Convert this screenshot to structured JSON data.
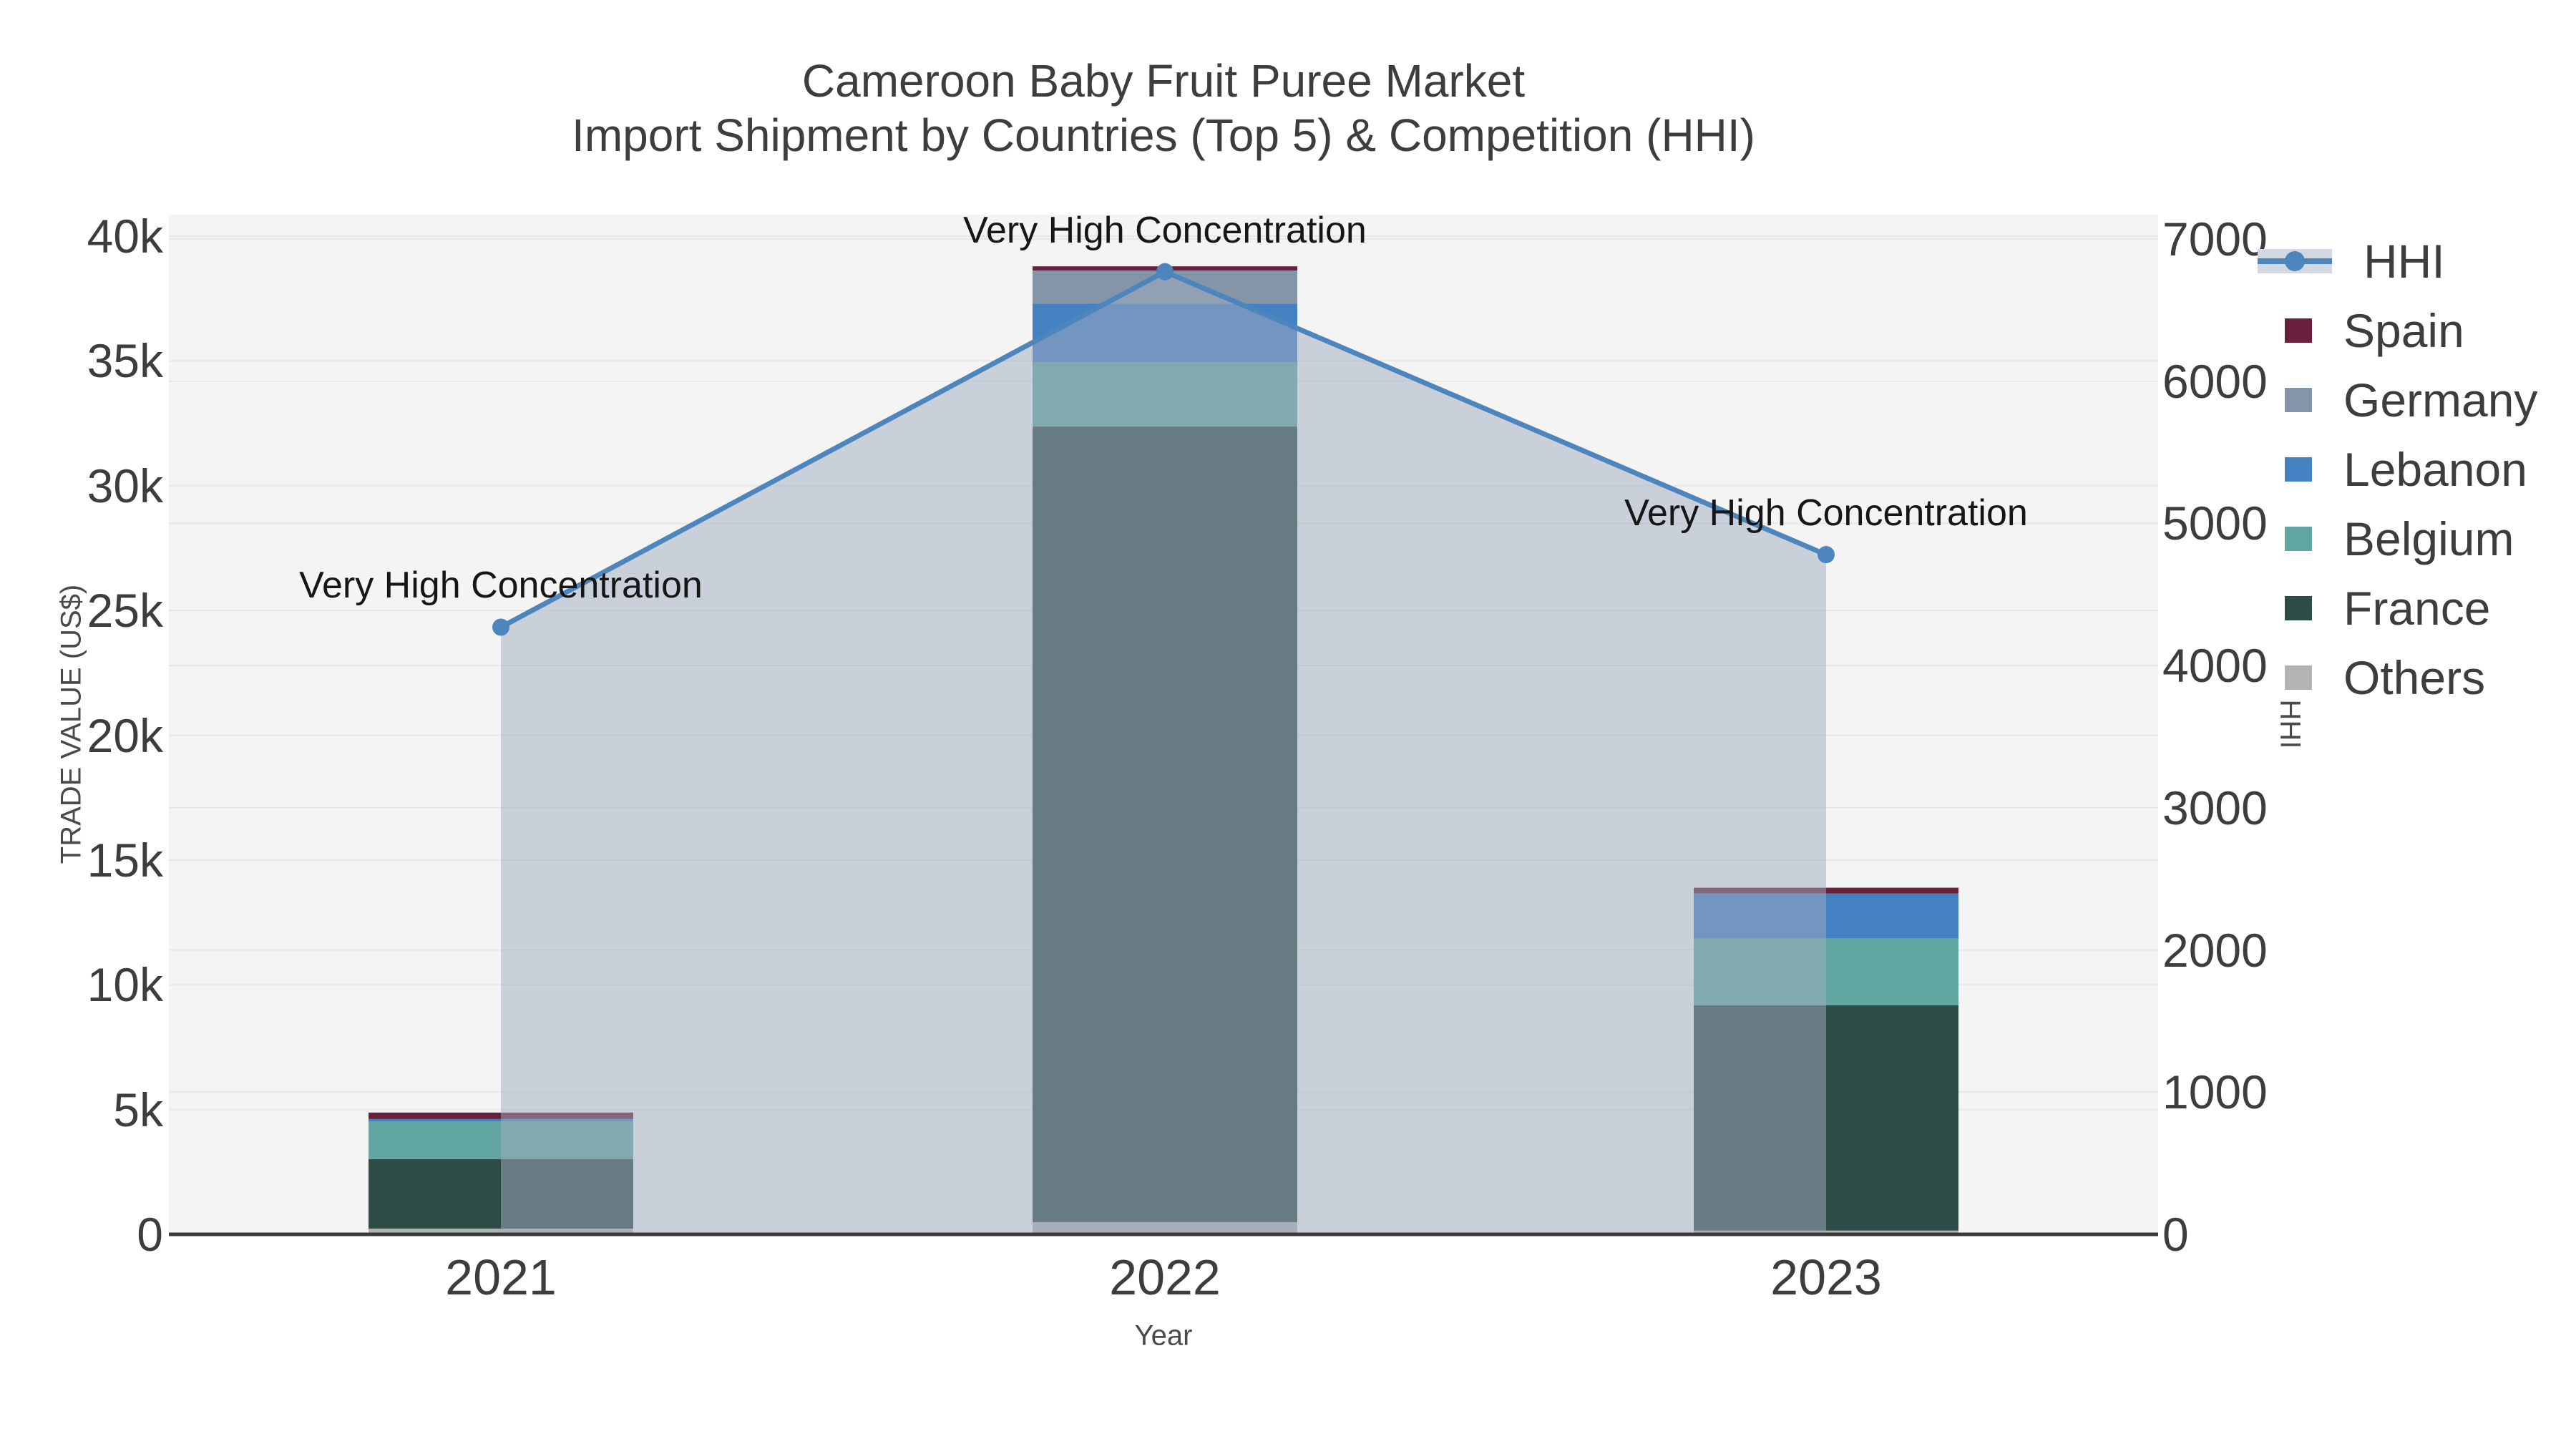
{
  "title": {
    "line1": "Cameroon Baby Fruit Puree Market",
    "line2": "Import Shipment by Countries (Top 5) & Competition (HHI)"
  },
  "chart_data": {
    "type": "combo-stacked-bar-line",
    "title": "Cameroon Baby Fruit Puree Market — Import Shipment by Countries (Top 5) & Competition (HHI)",
    "categories": [
      "2021",
      "2022",
      "2023"
    ],
    "bar_series": [
      {
        "name": "Spain",
        "color": "#68203c",
        "values": [
          260,
          170,
          230
        ]
      },
      {
        "name": "Germany",
        "color": "#8495a8",
        "values": [
          0,
          1320,
          0
        ]
      },
      {
        "name": "Lebanon",
        "color": "#4481c0",
        "values": [
          90,
          2350,
          1810
        ]
      },
      {
        "name": "Belgium",
        "color": "#62a6a2",
        "values": [
          1520,
          2580,
          2670
        ]
      },
      {
        "name": "France",
        "color": "#2d4c47",
        "values": [
          2780,
          31880,
          9030
        ]
      },
      {
        "name": "Others",
        "color": "#b3b3b3",
        "values": [
          230,
          490,
          150
        ]
      }
    ],
    "stack_order_bottom_to_top": [
      "Others",
      "France",
      "Belgium",
      "Lebanon",
      "Germany",
      "Spain"
    ],
    "line_series": {
      "name": "HHI",
      "axis": "right",
      "color": "#4d85bd",
      "fill_color": "rgba(160,171,189,0.5)",
      "values": [
        4270,
        6770,
        4780
      ]
    },
    "left_axis": {
      "title": "TRADE VALUE (US$)",
      "range": [
        0,
        40000
      ],
      "tick_values": [
        0,
        5000,
        10000,
        15000,
        20000,
        25000,
        30000,
        35000,
        40000
      ],
      "tick_labels": [
        "0",
        "5k",
        "10k",
        "15k",
        "20k",
        "25k",
        "30k",
        "35k",
        "40k"
      ]
    },
    "right_axis": {
      "title": "HHI",
      "range": [
        0,
        7000
      ],
      "tick_values": [
        0,
        1000,
        2000,
        3000,
        4000,
        5000,
        6000,
        7000
      ],
      "tick_labels": [
        "0",
        "1000",
        "2000",
        "3000",
        "4000",
        "5000",
        "6000",
        "7000"
      ]
    },
    "x_axis": {
      "title": "Year",
      "tick_labels": [
        "2021",
        "2022",
        "2023"
      ]
    },
    "annotations": [
      {
        "text": "Very High Concentration",
        "category": "2021",
        "hhi": 4270
      },
      {
        "text": "Very High Concentration",
        "category": "2022",
        "hhi": 6770
      },
      {
        "text": "Very High Concentration",
        "category": "2023",
        "hhi": 4780
      }
    ],
    "legend_position": "right",
    "grid": true
  },
  "legend": {
    "items": [
      {
        "label": "HHI",
        "kind": "line",
        "color": "#4d85bd"
      },
      {
        "label": "Spain",
        "kind": "swatch",
        "color": "#68203c"
      },
      {
        "label": "Germany",
        "kind": "swatch",
        "color": "#8495a8"
      },
      {
        "label": "Lebanon",
        "kind": "swatch",
        "color": "#4481c0"
      },
      {
        "label": "Belgium",
        "kind": "swatch",
        "color": "#62a6a2"
      },
      {
        "label": "France",
        "kind": "swatch",
        "color": "#2d4c47"
      },
      {
        "label": "Others",
        "kind": "swatch",
        "color": "#b3b3b3"
      }
    ]
  },
  "style": {
    "plot_bg": "#f4f4f4",
    "grid_color": "#e7e7e7",
    "axis_line_color": "#3a3a3a",
    "text_color": "#3d3d3d",
    "annotation_color": "#161616"
  }
}
